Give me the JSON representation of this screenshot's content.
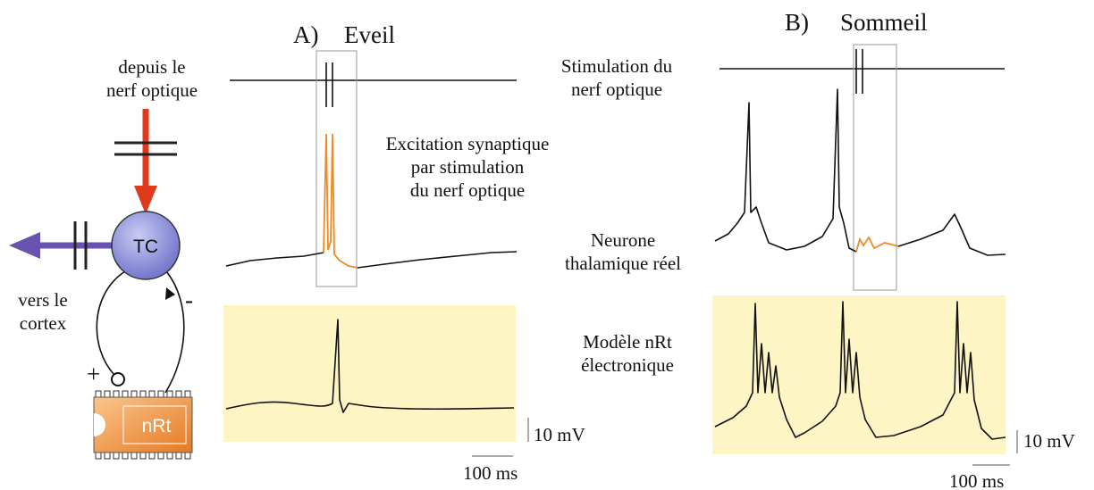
{
  "left_diagram": {
    "input_label": [
      "depuis le",
      "nerf optique"
    ],
    "tc": "TC",
    "output_label": [
      "vers le",
      "cortex"
    ],
    "minus": "-",
    "plus": "+",
    "nrt": "nRt"
  },
  "panel_a": {
    "letter": "A)",
    "title": "Eveil",
    "scale_v": "10 mV",
    "scale_t": "100 ms"
  },
  "panel_b": {
    "letter": "B)",
    "title": "Sommeil",
    "scale_v": "10 mV",
    "scale_t": "100 ms"
  },
  "labels": {
    "stimulation": [
      "Stimulation du",
      "nerf optique"
    ],
    "excitation": [
      "Excitation synaptique",
      "par stimulation",
      "du nerf optique"
    ],
    "neurone": [
      "Neurone",
      "thalamique réel"
    ],
    "modele": [
      "Modèle nRt",
      "électronique"
    ]
  }
}
